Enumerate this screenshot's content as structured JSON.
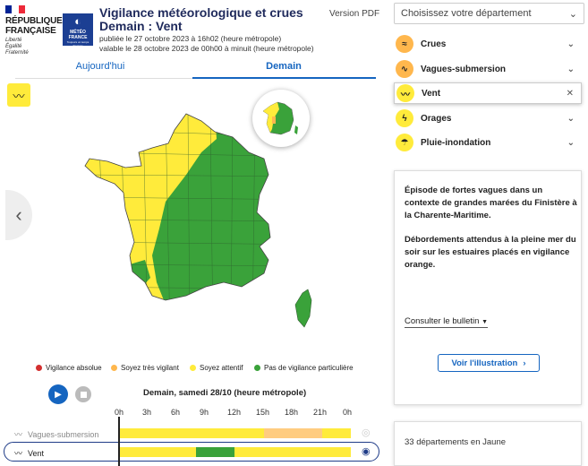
{
  "header": {
    "rf_lines": [
      "RÉPUBLIQUE",
      "FRANÇAISE"
    ],
    "rf_motto": [
      "Liberté",
      "Égalité",
      "Fraternité"
    ],
    "mf_name": "MÉTÉO FRANCE",
    "mf_sub": "Toujours un temps d'avance",
    "title_line1": "Vigilance météorologique et crues",
    "title_line2": "Demain : Vent",
    "published": "publiée le 27 octobre 2023 à 16h02 (heure métropole)",
    "valid": "valable le 28 octobre 2023 de 00h00 à minuit (heure métropole)",
    "pdf_label": "Version PDF"
  },
  "tabs": {
    "today": "Aujourd'hui",
    "tomorrow": "Demain"
  },
  "legend": [
    {
      "label": "Vigilance absolue",
      "color": "#d32f2f"
    },
    {
      "label": "Soyez très vigilant",
      "color": "#ffb74d"
    },
    {
      "label": "Soyez attentif",
      "color": "#ffeb3b"
    },
    {
      "label": "Pas de vigilance particulière",
      "color": "#3aa23a"
    }
  ],
  "timeline": {
    "title": "Demain, samedi 28/10 (heure métropole)",
    "hours": [
      "0h",
      "3h",
      "6h",
      "9h",
      "12h",
      "15h",
      "18h",
      "21h",
      "0h"
    ],
    "rows": [
      {
        "label": "Vagues-submersion",
        "icon": "waves-icon"
      },
      {
        "label": "Vent",
        "icon": "wind-icon"
      }
    ]
  },
  "right_panel": {
    "dept_placeholder": "Choisissez votre département",
    "phenomena": [
      {
        "label": "Crues",
        "icon": "flood-icon",
        "color": "#ffb74d",
        "state": "collapsed"
      },
      {
        "label": "Vagues-submersion",
        "icon": "waves-icon",
        "color": "#ffb74d",
        "state": "collapsed"
      },
      {
        "label": "Vent",
        "icon": "wind-icon",
        "color": "#ffeb3b",
        "state": "active"
      },
      {
        "label": "Orages",
        "icon": "lightning-icon",
        "color": "#ffeb3b",
        "state": "collapsed"
      },
      {
        "label": "Pluie-inondation",
        "icon": "rain-icon",
        "color": "#ffeb3b",
        "state": "collapsed"
      }
    ],
    "info_p1": "Épisode de fortes vagues dans un contexte de grandes marées du Finistère à la Charente-Maritime.",
    "info_p2": "Débordements attendus à la pleine mer du soir sur les estuaires placés en vigilance orange.",
    "bulletin_label": "Consulter le bulletin",
    "illustration_label": "Voir l'illustration",
    "count_text": "33 départements en Jaune"
  },
  "colors": {
    "yellow": "#ffeb3b",
    "orange": "#ffb74d",
    "green": "#3aa23a",
    "accent": "#1565c0"
  }
}
